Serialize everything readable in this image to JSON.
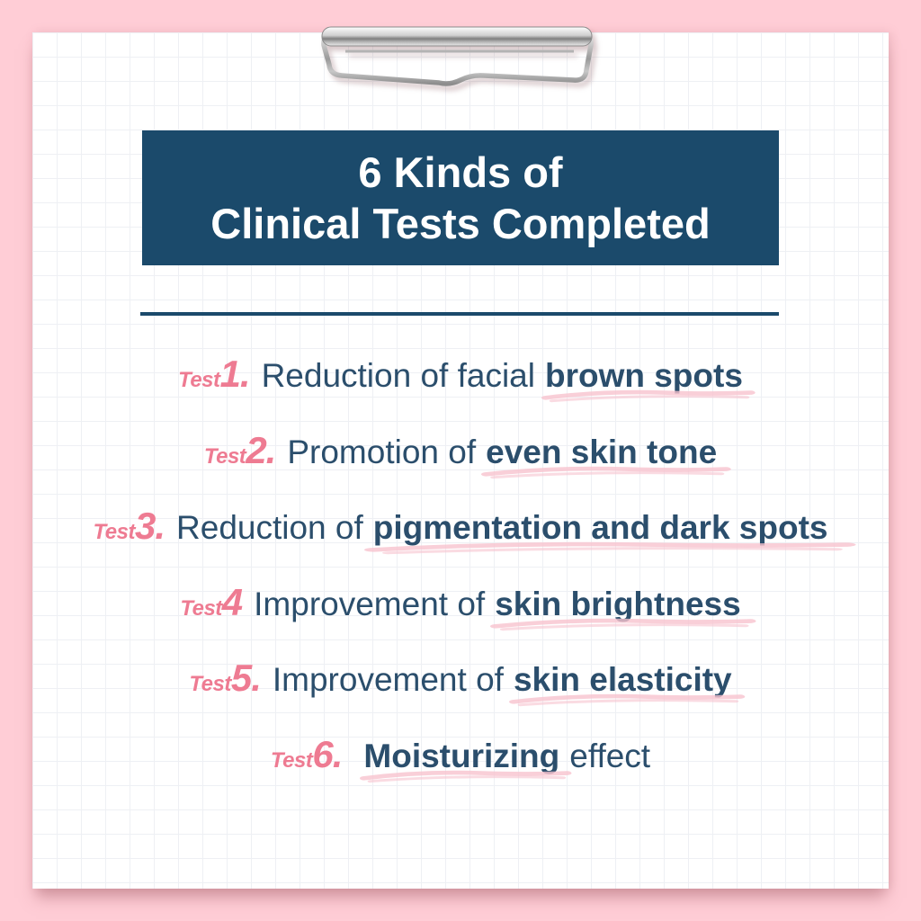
{
  "title": {
    "line1": "6 Kinds of",
    "line2": "Clinical Tests Completed"
  },
  "tests": [
    {
      "label": "Test",
      "number": "1.",
      "pre": "Reduction of facial",
      "bold": "brown spots",
      "post": ""
    },
    {
      "label": "Test",
      "number": "2.",
      "pre": "Promotion of",
      "bold": "even skin tone",
      "post": ""
    },
    {
      "label": "Test",
      "number": "3.",
      "pre": "Reduction of",
      "bold": "pigmentation and dark spots",
      "post": ""
    },
    {
      "label": "Test",
      "number": "4",
      "pre": "Improvement of",
      "bold": "skin brightness",
      "post": ""
    },
    {
      "label": "Test",
      "number": "5.",
      "pre": "Improvement of",
      "bold": "skin elasticity",
      "post": ""
    },
    {
      "label": "Test",
      "number": "6.",
      "pre": "",
      "bold": "Moisturizing",
      "post": "effect"
    }
  ],
  "colors": {
    "bg": "#ffcdd6",
    "paper": "#ffffff",
    "grid": "#eef0f4",
    "navy": "#2b4e6c",
    "navy-dark": "#1b4a6b",
    "pink-accent": "#ee7b92",
    "swoosh": "#f7c3ce",
    "title-text": "#ffffff"
  }
}
